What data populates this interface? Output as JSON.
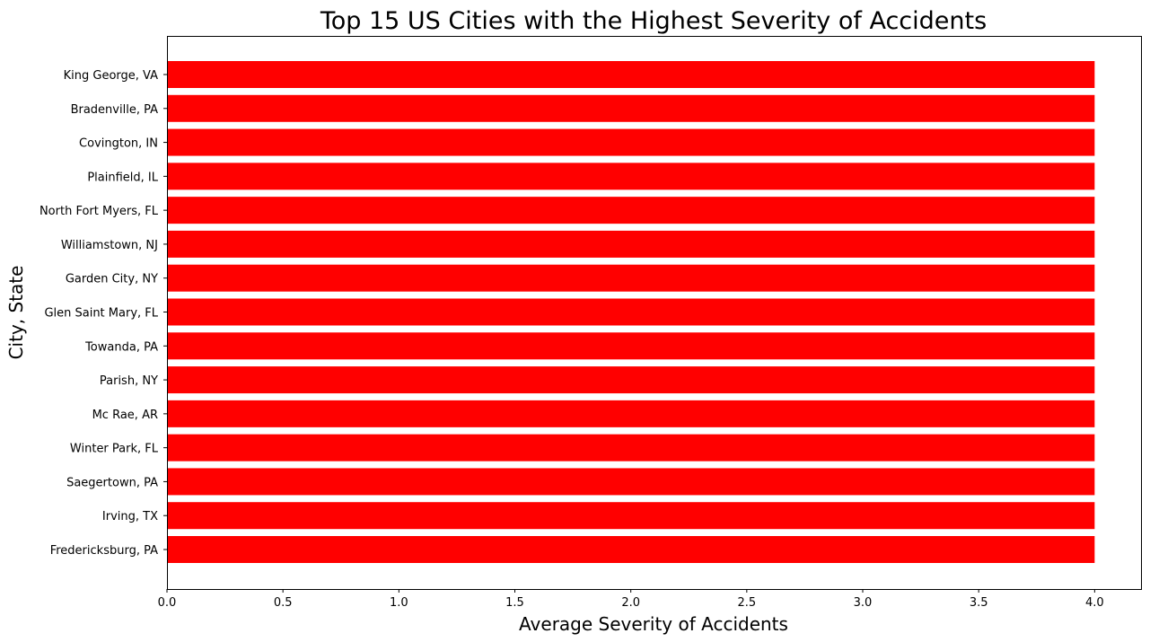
{
  "chart_data": {
    "type": "bar",
    "orientation": "horizontal",
    "title": "Top 15 US Cities with the Highest Severity of Accidents",
    "xlabel": "Average Severity of Accidents",
    "ylabel": "City, State",
    "xlim": [
      0,
      4.2
    ],
    "x_ticks": [
      "0.0",
      "0.5",
      "1.0",
      "1.5",
      "2.0",
      "2.5",
      "3.0",
      "3.5",
      "4.0"
    ],
    "x_tick_values": [
      0,
      0.5,
      1,
      1.5,
      2,
      2.5,
      3,
      3.5,
      4
    ],
    "categories": [
      "King George, VA",
      "Bradenville, PA",
      "Covington, IN",
      "Plainfield, IL",
      "North Fort Myers, FL",
      "Williamstown, NJ",
      "Garden City, NY",
      "Glen Saint Mary, FL",
      "Towanda, PA",
      "Parish, NY",
      "Mc Rae, AR",
      "Winter Park, FL",
      "Saegertown, PA",
      "Irving, TX",
      "Fredericksburg, PA"
    ],
    "values": [
      4,
      4,
      4,
      4,
      4,
      4,
      4,
      4,
      4,
      4,
      4,
      4,
      4,
      4,
      4
    ],
    "bar_color": "#ff0000",
    "grid": false,
    "legend": "none"
  }
}
